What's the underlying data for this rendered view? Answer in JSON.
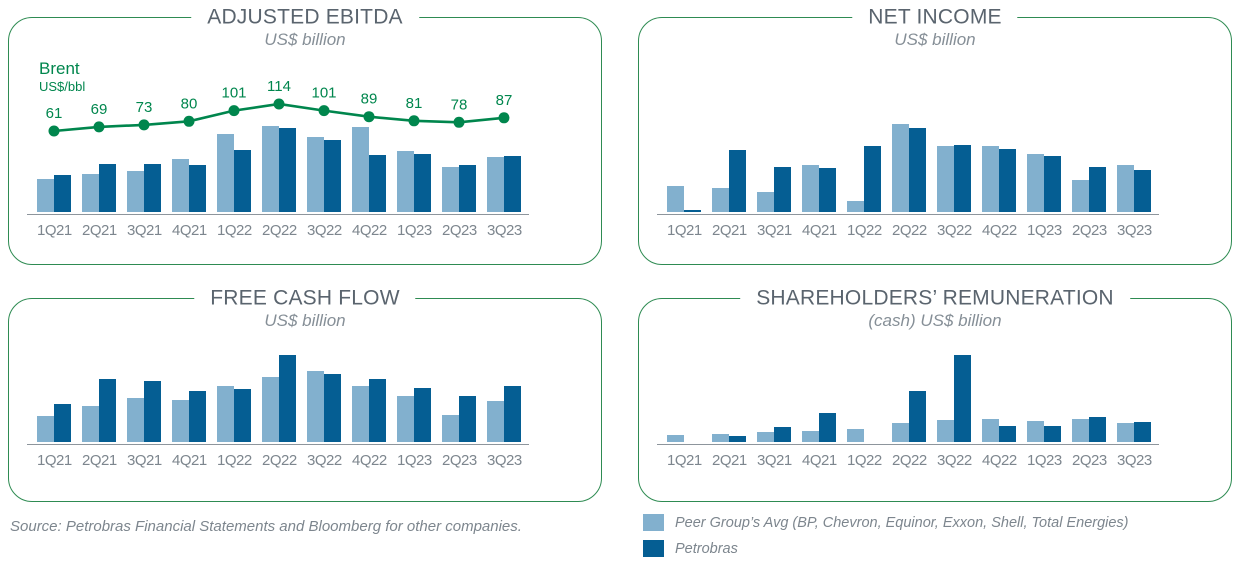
{
  "colors": {
    "peer_bar": "#82b0ce",
    "petrobras_bar": "#055e93",
    "brent_line": "#00864d",
    "panel_border": "#2e8b52",
    "title_text": "#5a646e",
    "muted_text": "#868f97",
    "tick_text": "#7d868e",
    "axis_line": "#8d959c"
  },
  "chart_data": [
    {
      "type": "bar",
      "title": "ADJUSTED EBITDA",
      "subtitle": "US$ billion",
      "categories": [
        "1Q21",
        "2Q21",
        "3Q21",
        "4Q21",
        "1Q22",
        "2Q22",
        "3Q22",
        "4Q22",
        "1Q23",
        "2Q23",
        "3Q23"
      ],
      "series": [
        {
          "name": "Peer Group’s Avg",
          "values": [
            8.3,
            9.5,
            10.3,
            13.3,
            19.5,
            21.5,
            18.8,
            21.3,
            15.3,
            11.3,
            13.8
          ]
        },
        {
          "name": "Petrobras",
          "values": [
            9.3,
            12.0,
            12.0,
            11.8,
            15.5,
            21.0,
            18.0,
            14.3,
            14.5,
            11.8,
            14.0
          ]
        }
      ],
      "line_series": {
        "name": "Brent",
        "unit": "US$/bbl",
        "values": [
          61,
          69,
          73,
          80,
          101,
          114,
          101,
          89,
          81,
          78,
          87
        ]
      },
      "ylim": [
        0,
        22
      ],
      "grid": false
    },
    {
      "type": "bar",
      "title": "NET INCOME",
      "subtitle": "US$ billion",
      "categories": [
        "1Q21",
        "2Q21",
        "3Q21",
        "4Q21",
        "1Q22",
        "2Q22",
        "3Q22",
        "4Q22",
        "1Q23",
        "2Q23",
        "3Q23"
      ],
      "series": [
        {
          "name": "Peer Group’s Avg",
          "values": [
            3.4,
            3.1,
            2.6,
            6.1,
            1.4,
            11.4,
            8.5,
            8.5,
            7.5,
            4.2,
            6.1
          ]
        },
        {
          "name": "Petrobras",
          "values": [
            0.3,
            8.1,
            5.9,
            5.7,
            8.6,
            10.9,
            8.7,
            8.2,
            7.3,
            5.9,
            5.5
          ]
        }
      ],
      "ylim": [
        0,
        12
      ],
      "grid": false
    },
    {
      "type": "bar",
      "title": "FREE CASH FLOW",
      "subtitle": "US$ billion",
      "categories": [
        "1Q21",
        "2Q21",
        "3Q21",
        "4Q21",
        "1Q22",
        "2Q22",
        "3Q22",
        "4Q22",
        "1Q23",
        "2Q23",
        "3Q23"
      ],
      "series": [
        {
          "name": "Peer Group’s Avg",
          "values": [
            3.9,
            5.4,
            6.6,
            6.3,
            8.4,
            9.8,
            10.7,
            8.4,
            6.9,
            4.1,
            6.2
          ]
        },
        {
          "name": "Petrobras",
          "values": [
            5.7,
            9.5,
            9.2,
            7.7,
            8.0,
            13.1,
            10.2,
            9.5,
            8.1,
            6.9,
            8.4
          ]
        }
      ],
      "ylim": [
        0,
        14
      ],
      "grid": false
    },
    {
      "type": "bar",
      "title": "SHAREHOLDERS’ REMUNERATION",
      "subtitle": "(cash) US$ billion",
      "categories": [
        "1Q21",
        "2Q21",
        "3Q21",
        "4Q21",
        "1Q22",
        "2Q22",
        "3Q22",
        "4Q22",
        "1Q23",
        "2Q23",
        "3Q23"
      ],
      "series": [
        {
          "name": "Peer Group’s Avg",
          "values": [
            1.3,
            1.5,
            1.9,
            2.1,
            2.5,
            3.6,
            4.2,
            4.4,
            4.0,
            4.4,
            3.6
          ]
        },
        {
          "name": "Petrobras",
          "values": [
            0.0,
            1.1,
            2.9,
            5.5,
            0.0,
            9.7,
            16.5,
            3.0,
            3.0,
            4.8,
            3.8
          ]
        }
      ],
      "ylim": [
        0,
        17
      ],
      "grid": false
    }
  ],
  "legend": {
    "position": "bottom-right",
    "items": [
      {
        "series": "peer",
        "label": "Peer Group’s Avg (BP, Chevron, Equinor, Exxon, Shell, Total Energies)"
      },
      {
        "series": "petrobras",
        "label": "Petrobras"
      }
    ]
  },
  "footer": {
    "source": "Source: Petrobras Financial Statements and Bloomberg for other companies."
  }
}
